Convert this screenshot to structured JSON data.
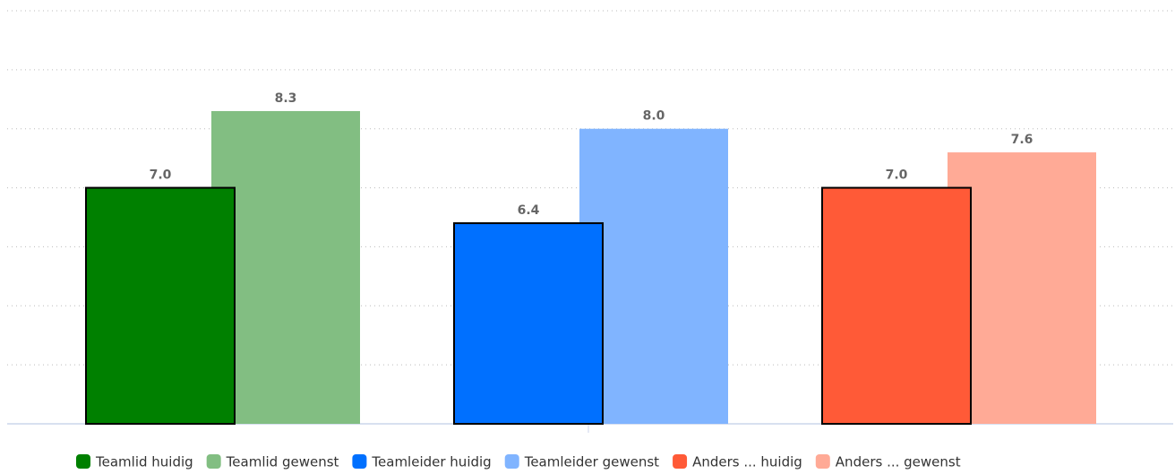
{
  "chart_data": {
    "type": "bar",
    "categories": [
      null
    ],
    "series": [
      {
        "name": "Teamlid huidig",
        "color": "#008000",
        "values": [
          7
        ],
        "value_labels": [
          "7.0"
        ]
      },
      {
        "name": "Teamlid gewenst",
        "color": "#82be82",
        "values": [
          8.3
        ],
        "value_labels": [
          "8.3"
        ]
      },
      {
        "name": "Teamleider huidig",
        "color": "#0070ff",
        "values": [
          6.4
        ],
        "value_labels": [
          "6.4"
        ]
      },
      {
        "name": "Teamleider gewenst",
        "color": "#80b4ff",
        "values": [
          8
        ],
        "value_labels": [
          "8.0"
        ]
      },
      {
        "name": "Anders ... huidig",
        "color": "#ff5a37",
        "values": [
          7
        ],
        "value_labels": [
          "7.0"
        ]
      },
      {
        "name": "Anders ... gewenst",
        "color": "#ffaa96",
        "values": [
          7.6
        ],
        "value_labels": [
          "7.6"
        ]
      }
    ],
    "ylim": [
      3,
      10
    ],
    "yticks": [
      3,
      4,
      5,
      6,
      7,
      8,
      9,
      10
    ],
    "grid": true,
    "legend": "bottom"
  }
}
